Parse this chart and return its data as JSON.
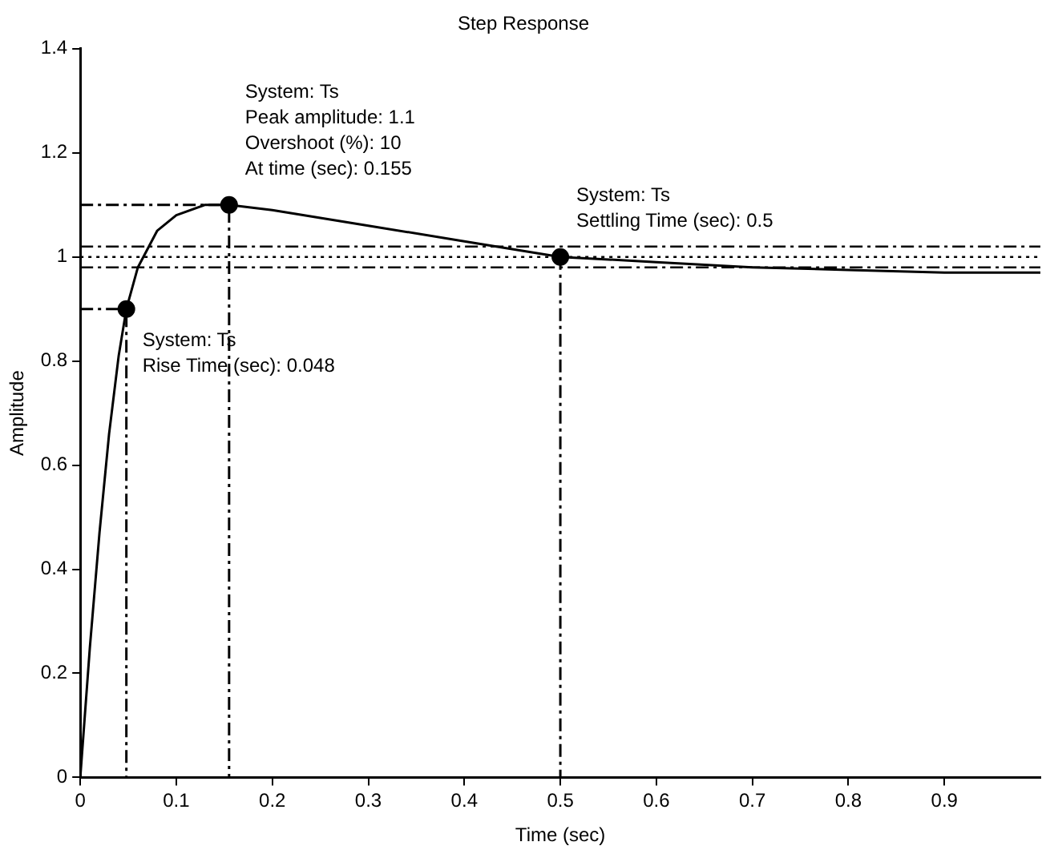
{
  "chart_data": {
    "type": "line",
    "title": "Step Response",
    "xlabel": "Time (sec)",
    "ylabel": "Amplitude",
    "xlim": [
      0,
      1
    ],
    "xticks": [
      0,
      0.1,
      0.2,
      0.3,
      0.4,
      0.5,
      0.6,
      0.7,
      0.8,
      0.9
    ],
    "ylim": [
      0,
      1.4
    ],
    "yticks": [
      0,
      0.2,
      0.4,
      0.6,
      0.8,
      1,
      1.2,
      1.4
    ],
    "grid": false,
    "legend": false,
    "series": [
      {
        "type": "line",
        "color": "#000000",
        "line_style": "solid",
        "marker": "none",
        "x": [
          0,
          0.01,
          0.02,
          0.03,
          0.04,
          0.048,
          0.06,
          0.08,
          0.1,
          0.13,
          0.155,
          0.2,
          0.3,
          0.4,
          0.5,
          0.6,
          0.7,
          0.8,
          0.9,
          1.0
        ],
        "values": [
          0,
          0.25,
          0.47,
          0.66,
          0.81,
          0.9,
          0.98,
          1.05,
          1.08,
          1.1,
          1.1,
          1.09,
          1.06,
          1.03,
          1.0,
          0.99,
          0.98,
          0.975,
          0.97,
          0.97
        ]
      },
      {
        "type": "line",
        "color": "#000000",
        "line_style": "dashed",
        "marker": "none",
        "x": [
          0,
          0.155,
          0.155
        ],
        "values": [
          1.1,
          1.1,
          0
        ]
      },
      {
        "type": "line",
        "color": "#000000",
        "line_style": "dashed",
        "marker": "none",
        "x": [
          0,
          0.048,
          0.048
        ],
        "values": [
          0.9,
          0.9,
          0
        ]
      },
      {
        "type": "line",
        "color": "#000000",
        "line_style": "dashed",
        "marker": "none",
        "x": [
          0.5,
          0.5
        ],
        "values": [
          1.0,
          0
        ]
      },
      {
        "type": "scatter",
        "color": "#000000",
        "marker": "circle",
        "x": [
          0.048,
          0.155,
          0.5
        ],
        "values": [
          0.9,
          1.1,
          1.0
        ]
      }
    ],
    "ref_lines": [
      {
        "axis": "y",
        "value": 1.02,
        "color": "#000000",
        "line_style": "dashed"
      },
      {
        "axis": "y",
        "value": 1.0,
        "color": "#000000",
        "line_style": "dotted"
      },
      {
        "axis": "y",
        "value": 0.98,
        "color": "#000000",
        "line_style": "dashed"
      }
    ],
    "annotations": [
      {
        "text": "System: Ts\nPeak amplitude: 1.1\nOvershoot (%): 10\nAt time (sec): 0.155",
        "x": 0.155,
        "y": 1.1
      },
      {
        "text": "System: Ts\nRise Time (sec): 0.048",
        "x": 0.048,
        "y": 0.9
      },
      {
        "text": "System: Ts\nSettling Time (sec): 0.5",
        "x": 0.5,
        "y": 1.0
      }
    ]
  }
}
